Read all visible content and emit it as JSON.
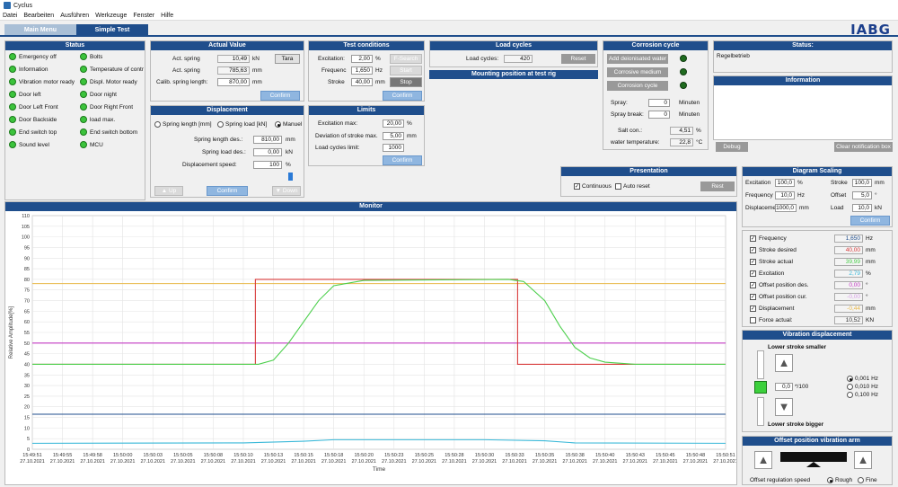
{
  "app": {
    "title": "Cyclus",
    "logo": "IABG"
  },
  "menu": [
    "Datei",
    "Bearbeiten",
    "Ausführen",
    "Werkzeuge",
    "Fenster",
    "Hilfe"
  ],
  "tabs": {
    "main": "Main Menu",
    "simple": "Simple Test"
  },
  "status_panel": {
    "title": "Status",
    "left": [
      "Emergency off",
      "Information",
      "Vibration motor ready",
      "Door left",
      "Door Left Front",
      "Door Backside",
      "End switch top",
      "Sound level"
    ],
    "right": [
      "Bolts",
      "Temperature of contr",
      "Displ. Motor ready",
      "Door night",
      "Door Right Front",
      "load max.",
      "End switch bottom",
      "MCU"
    ]
  },
  "actual_value": {
    "title": "Actual Value",
    "act_spring_label": "Act. spring",
    "act_spring_value": "10,49",
    "act_spring_unit": "kN",
    "act_spring2_label": "Act. spring",
    "act_spring2_value": "785,63",
    "act_spring2_unit": "mm",
    "calib_label": "Calib. spring length:",
    "calib_value": "870,00",
    "calib_unit": "mm",
    "tara": "Tara",
    "confirm": "Confirm"
  },
  "displacement": {
    "title": "Displacement",
    "opt1": "Spring length [mm]",
    "opt2": "Spring load [kN]",
    "opt3": "Manuel",
    "len_label": "Spring length des.:",
    "len_value": "810,00",
    "len_unit": "mm",
    "load_label": "Spring load des.:",
    "load_value": "0,00",
    "load_unit": "kN",
    "speed_label": "Displacement speed:",
    "speed_value": "100",
    "speed_unit": "%",
    "up": "Up",
    "confirm": "Confirm",
    "down": "Down"
  },
  "test_conditions": {
    "title": "Test conditions",
    "exc_label": "Excitation:",
    "exc_value": "2,00",
    "exc_unit": "%",
    "freq_label": "Frequenc",
    "freq_value": "1,650",
    "freq_unit": "Hz",
    "stroke_label": "Stroke",
    "stroke_value": "40,00",
    "stroke_unit": "mm",
    "fsearch": "F-Search",
    "start": "Start",
    "stop": "Stop",
    "confirm": "Confirm"
  },
  "limits": {
    "title": "Limits",
    "exc_max_label": "Excitation max:",
    "exc_max_value": "20,00",
    "exc_max_unit": "%",
    "dev_label": "Deviation of stroke max.",
    "dev_value": "5,00",
    "dev_unit": "mm",
    "lc_label": "Load cycles limit:",
    "lc_value": "1000",
    "confirm": "Confirm"
  },
  "load_cycles": {
    "title": "Load cycles",
    "label": "Load cycles:",
    "value": "420",
    "reset": "Reset",
    "mounting": "Mounting position at test rig"
  },
  "corrosion": {
    "title": "Corrosion cycle",
    "b1": "Add deionisated water",
    "b2": "Corrosive medium",
    "b3": "Corrosion cycle",
    "spray_label": "Spray:",
    "spray_value": "0",
    "spray_unit": "Minuten",
    "break_label": "Spray break:",
    "break_value": "0",
    "break_unit": "Minuten",
    "salt_label": "Salt con.:",
    "salt_value": "4,51",
    "salt_unit": "%",
    "water_label": "water temperature:",
    "water_value": "22,8",
    "water_unit": "°C"
  },
  "status_right": {
    "title": "Status:",
    "value": "Regelbetrieb",
    "info_title": "Information",
    "debug": "Debug",
    "clear": "Clear notification box"
  },
  "presentation": {
    "title": "Presentation",
    "continuous": "Continuous",
    "auto_reset": "Auto reset",
    "rest": "Rest"
  },
  "diagram_scaling": {
    "title": "Diagram Scaling",
    "exc_label": "Excitation",
    "exc_value": "100,0",
    "exc_unit": "%",
    "stroke_label": "Stroke",
    "stroke_value": "100,0",
    "stroke_unit": "mm",
    "freq_label": "Frequency",
    "freq_value": "10,0",
    "freq_unit": "Hz",
    "offset_label": "Offset",
    "offset_value": "5,0",
    "offset_unit": "°",
    "disp_label": "Displaceme",
    "disp_value": "1000,0",
    "disp_unit": "mm",
    "load_label": "Load",
    "load_value": "10,0",
    "load_unit": "kN",
    "confirm": "Confirm"
  },
  "legend_panel": {
    "items": [
      {
        "label": "Frequency",
        "value": "1,650",
        "unit": "Hz",
        "color": "#1f4e8c",
        "checked": true
      },
      {
        "label": "Stroke desired",
        "value": "40,00",
        "unit": "mm",
        "color": "#d83a3a",
        "checked": true
      },
      {
        "label": "Stroke actual",
        "value": "39,99",
        "unit": "mm",
        "color": "#4ccf4c",
        "checked": true
      },
      {
        "label": "Excitation",
        "value": "2,79",
        "unit": "%",
        "color": "#39b8d8",
        "checked": true
      },
      {
        "label": "Offset position des.",
        "value": "0,00",
        "unit": "°",
        "color": "#c43ac4",
        "checked": true
      },
      {
        "label": "Offset position cur.",
        "value": "-0,00",
        "unit": "°",
        "color": "#d8a0e8",
        "checked": true
      },
      {
        "label": "Displacement",
        "value": "-0,44",
        "unit": "mm",
        "color": "#e8b84a",
        "checked": true
      },
      {
        "label": "Force actual:",
        "value": "10,52",
        "unit": "KN",
        "color": "#333333",
        "checked": false
      }
    ]
  },
  "vibration_disp": {
    "title": "Vibration displacement",
    "smaller": "Lower stroke smaller",
    "bigger": "Lower stroke bigger",
    "value": "0,0",
    "unit": "*/100",
    "r1": "0,001 Hz",
    "r2": "0,010 Hz",
    "r3": "0,100 Hz"
  },
  "offset_arm": {
    "title": "Offset position vibration arm",
    "speed_label": "Offset regulation speed",
    "rough": "Rough",
    "fine": "Fine"
  },
  "monitor": {
    "title": "Monitor",
    "ylabel": "Relative Amplitude[%]",
    "xlabel": "Time"
  },
  "chart_data": {
    "type": "line",
    "ylim": [
      0,
      110
    ],
    "yticks": [
      0,
      5,
      10,
      15,
      20,
      25,
      30,
      35,
      40,
      45,
      50,
      55,
      60,
      65,
      70,
      75,
      80,
      85,
      90,
      95,
      100,
      105,
      110
    ],
    "xticks": [
      "15:49:51",
      "15:49:55",
      "15:49:58",
      "15:50:00",
      "15:50:03",
      "15:50:05",
      "15:50:08",
      "15:50:10",
      "15:50:13",
      "15:50:15",
      "15:50:18",
      "15:50:20",
      "15:50:23",
      "15:50:25",
      "15:50:28",
      "15:50:30",
      "15:50:33",
      "15:50:35",
      "15:50:38",
      "15:50:40",
      "15:50:43",
      "15:50:45",
      "15:50:48",
      "15:50:51"
    ],
    "xdate": "27.10.2021",
    "grid": true,
    "series": [
      {
        "color": "#e8b84a",
        "x": [
          0,
          23
        ],
        "values": [
          78,
          78
        ]
      },
      {
        "color": "#c43ac4",
        "x": [
          0,
          23
        ],
        "values": [
          50,
          50
        ]
      },
      {
        "color": "#d83a3a",
        "x": [
          0,
          7.4,
          7.4,
          16.1,
          16.1,
          23
        ],
        "values": [
          40,
          40,
          80,
          80,
          40,
          40
        ]
      },
      {
        "color": "#4ccf4c",
        "x": [
          0,
          7.5,
          8,
          8.5,
          9,
          9.5,
          10,
          11,
          15.8,
          16.3,
          17,
          17.5,
          18,
          18.5,
          19,
          20,
          23
        ],
        "values": [
          40,
          40,
          42,
          50,
          60,
          70,
          77,
          79.5,
          80,
          79,
          70,
          58,
          48,
          43,
          41,
          40,
          40
        ]
      },
      {
        "color": "#1f4e8c",
        "x": [
          0,
          23
        ],
        "values": [
          16.5,
          16.5
        ]
      },
      {
        "color": "#39b8d8",
        "x": [
          0,
          7,
          9,
          10,
          15,
          17,
          18,
          23
        ],
        "values": [
          2.8,
          3,
          3.8,
          4.5,
          4.5,
          4,
          3,
          2.8
        ]
      }
    ]
  }
}
